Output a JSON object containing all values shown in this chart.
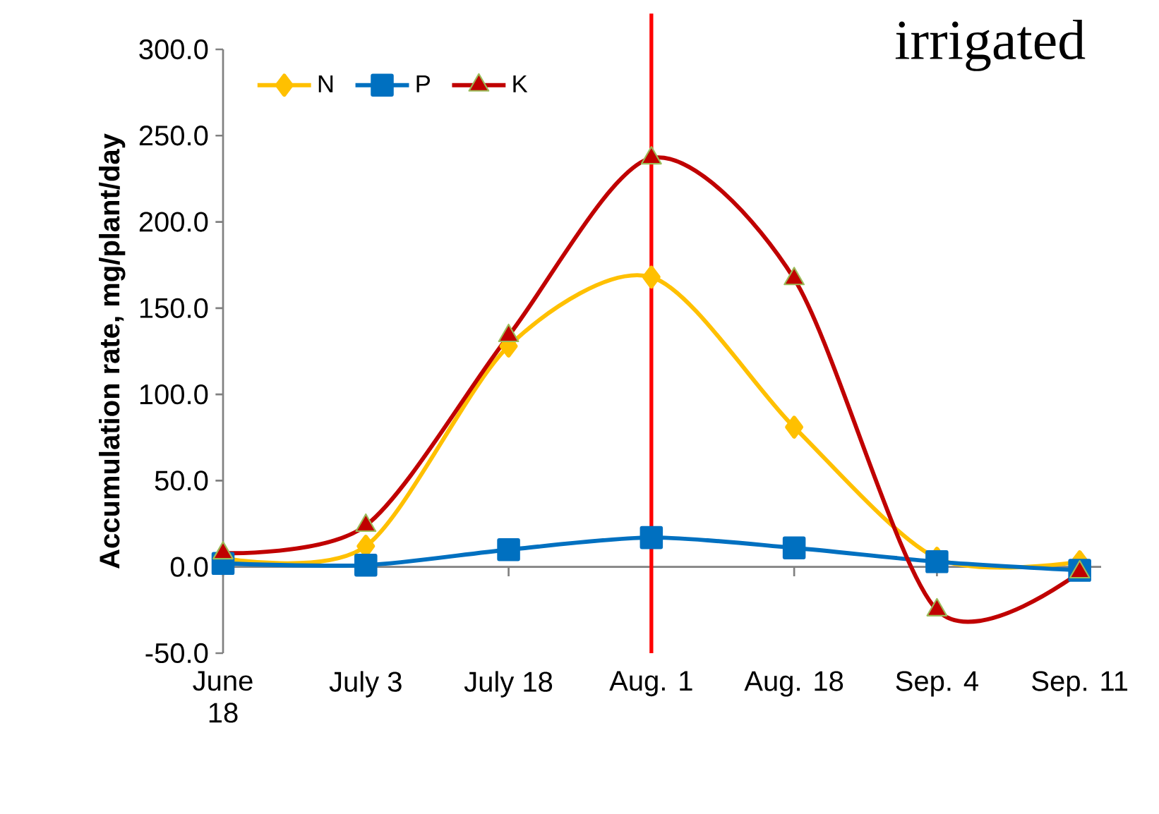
{
  "chart_data": {
    "type": "line",
    "ylabel": "Accumulation rate, mg/plant/day",
    "categories": [
      "June 18",
      "July 3",
      "July 18",
      "Aug. 1",
      "Aug. 18",
      "Sep. 4",
      "Sep. 11"
    ],
    "series": [
      {
        "name": "N",
        "color": "#ffc000",
        "marker": "diamond",
        "values": [
          5,
          12,
          128,
          168,
          81,
          5,
          3
        ]
      },
      {
        "name": "P",
        "color": "#0070c0",
        "marker": "square",
        "values": [
          2,
          1,
          10,
          17,
          11,
          3,
          -2
        ]
      },
      {
        "name": "K",
        "color": "#c00000",
        "marker": "triangle",
        "values": [
          8,
          24,
          134,
          237,
          167,
          -25,
          -3
        ]
      }
    ],
    "ylim": [
      -50,
      300
    ],
    "yticks": [
      {
        "value": -50,
        "label": "-50.0"
      },
      {
        "value": 0,
        "label": "0.0"
      },
      {
        "value": 50,
        "label": "50.0"
      },
      {
        "value": 100,
        "label": "100.0"
      },
      {
        "value": 150,
        "label": "150.0"
      },
      {
        "value": 200,
        "label": "200.0"
      },
      {
        "value": 250,
        "label": "250.0"
      },
      {
        "value": 300,
        "label": "300.0"
      }
    ],
    "ref_lines": [
      {
        "axis": "x",
        "value": "Aug. 1",
        "color": "#ff0000"
      }
    ],
    "annotations": [
      "irrigated"
    ],
    "legend": "top left",
    "grid": false
  }
}
